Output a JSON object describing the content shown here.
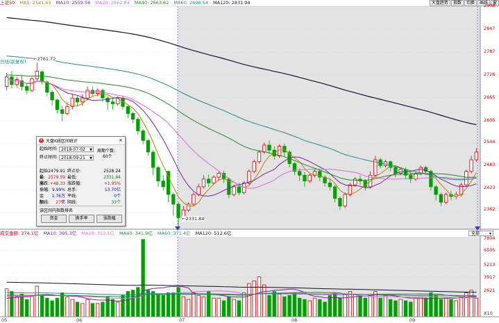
{
  "top_legend": {
    "index_name": "上证50",
    "ma5": "MA5: 2541.63",
    "ma10": "MA10: 2559.56",
    "ma20": "MA20: 2562.84",
    "ma40": "MA40: 2663.62",
    "ma60": "MA60: 2696.54",
    "ma120": "MA120: 2831.94"
  },
  "toolbar": [
    "大盘趋势",
    "指数",
    "切换",
    "画线",
    "窗"
  ],
  "side_label": "日线(前复权)",
  "price_axis": [
    "2908",
    "2847",
    "2787",
    "2726",
    "2665",
    "2605",
    "2544",
    "2483",
    "2423",
    "2362"
  ],
  "volume_axis": [
    "7804",
    "6505",
    "5213",
    "3917",
    "2621"
  ],
  "volume_unit": "X10",
  "dates": [
    "05",
    "06",
    "07",
    "08",
    "09"
  ],
  "annotations": {
    "high": "2761.72",
    "low": "2331.84"
  },
  "volume_legend": {
    "vol": "成交金额: 374.1亿",
    "ma10": "MA10: 395.3亿",
    "ma20": "MA20: 353.5亿",
    "ma40": "MA40: 341.9亿",
    "ma60": "MA60: 371.4亿",
    "ma120": "MA120: 512.6亿"
  },
  "dropdown": "全部",
  "dialog": {
    "title": "大盘K线区间统计",
    "start_label": "起始时间:",
    "start_value": "2018-07-02",
    "end_label": "终止时间:",
    "end_value": "2018-09-21",
    "period_label": "周期个数:",
    "period_value": "60个",
    "stats": [
      [
        "起始价:",
        "2479.91",
        "终止价:",
        "2528.24"
      ],
      [
        "最高:",
        "2579.59",
        "最低:",
        "2331.84"
      ],
      [
        "涨跌:",
        "+48.33",
        "涨跌幅:",
        "+1.95%"
      ],
      [
        "振幅:",
        "9.99%",
        "总手:",
        "13.70亿"
      ],
      [
        "金额:",
        "1.76万亿",
        "平线:",
        "0个"
      ],
      [
        "阳线:",
        "27个",
        "阴线:",
        "33个"
      ]
    ],
    "link": "该区间内指数排名",
    "buttons": [
      "资金",
      "换手率",
      "涨跌幅"
    ]
  },
  "colors": {
    "up": "#d40000",
    "down": "#00a000",
    "ma5": "#b8860b",
    "ma10": "#7b1fa2",
    "ma20": "#e066e0",
    "ma40": "#228b22",
    "ma60": "#1f8a8a",
    "ma120": "#101030",
    "highlight": "#e3e3e3"
  },
  "chart_data": {
    "type": "candlestick",
    "price_range": [
      2330,
      2908
    ],
    "volume_range": [
      2000,
      8000
    ],
    "candles": [
      [
        2700,
        2725,
        2690,
        2735
      ],
      [
        2725,
        2705,
        2695,
        2740
      ],
      [
        2705,
        2718,
        2698,
        2725
      ],
      [
        2715,
        2700,
        2690,
        2730
      ],
      [
        2700,
        2690,
        2680,
        2710
      ],
      [
        2690,
        2720,
        2685,
        2725
      ],
      [
        2720,
        2740,
        2715,
        2762
      ],
      [
        2738,
        2712,
        2705,
        2742
      ],
      [
        2712,
        2685,
        2675,
        2715
      ],
      [
        2685,
        2665,
        2650,
        2690
      ],
      [
        2665,
        2640,
        2630,
        2668
      ],
      [
        2640,
        2630,
        2610,
        2650
      ],
      [
        2630,
        2648,
        2625,
        2660
      ],
      [
        2648,
        2670,
        2640,
        2680
      ],
      [
        2670,
        2660,
        2650,
        2678
      ],
      [
        2660,
        2670,
        2650,
        2680
      ],
      [
        2670,
        2690,
        2665,
        2700
      ],
      [
        2690,
        2682,
        2675,
        2700
      ],
      [
        2682,
        2690,
        2675,
        2695
      ],
      [
        2690,
        2670,
        2660,
        2695
      ],
      [
        2670,
        2660,
        2640,
        2675
      ],
      [
        2660,
        2655,
        2640,
        2668
      ],
      [
        2655,
        2670,
        2650,
        2675
      ],
      [
        2670,
        2648,
        2640,
        2675
      ],
      [
        2648,
        2630,
        2618,
        2652
      ],
      [
        2630,
        2615,
        2605,
        2635
      ],
      [
        2615,
        2585,
        2575,
        2620
      ],
      [
        2585,
        2560,
        2550,
        2590
      ],
      [
        2560,
        2530,
        2520,
        2565
      ],
      [
        2530,
        2490,
        2470,
        2535
      ],
      [
        2490,
        2455,
        2440,
        2495
      ],
      [
        2455,
        2440,
        2430,
        2470
      ],
      [
        2480,
        2420,
        2400,
        2482
      ],
      [
        2420,
        2395,
        2365,
        2425
      ],
      [
        2395,
        2360,
        2332,
        2400
      ],
      [
        2360,
        2380,
        2355,
        2390
      ],
      [
        2380,
        2395,
        2375,
        2400
      ],
      [
        2395,
        2420,
        2390,
        2425
      ],
      [
        2420,
        2440,
        2415,
        2448
      ],
      [
        2440,
        2460,
        2435,
        2470
      ],
      [
        2460,
        2450,
        2440,
        2472
      ],
      [
        2450,
        2465,
        2445,
        2470
      ],
      [
        2465,
        2475,
        2455,
        2480
      ],
      [
        2475,
        2460,
        2450,
        2482
      ],
      [
        2460,
        2420,
        2410,
        2465
      ],
      [
        2420,
        2440,
        2415,
        2445
      ],
      [
        2440,
        2425,
        2418,
        2450
      ],
      [
        2425,
        2450,
        2420,
        2455
      ],
      [
        2450,
        2480,
        2445,
        2485
      ],
      [
        2480,
        2505,
        2475,
        2510
      ],
      [
        2505,
        2530,
        2500,
        2535
      ],
      [
        2530,
        2548,
        2525,
        2555
      ],
      [
        2548,
        2535,
        2525,
        2560
      ],
      [
        2535,
        2520,
        2510,
        2545
      ],
      [
        2520,
        2545,
        2515,
        2550
      ],
      [
        2545,
        2530,
        2520,
        2552
      ],
      [
        2530,
        2500,
        2490,
        2535
      ],
      [
        2500,
        2480,
        2470,
        2505
      ],
      [
        2480,
        2470,
        2455,
        2488
      ],
      [
        2470,
        2455,
        2440,
        2478
      ],
      [
        2455,
        2470,
        2450,
        2475
      ],
      [
        2470,
        2480,
        2465,
        2485
      ],
      [
        2480,
        2465,
        2455,
        2485
      ],
      [
        2465,
        2450,
        2440,
        2470
      ],
      [
        2450,
        2440,
        2430,
        2460
      ],
      [
        2440,
        2410,
        2400,
        2445
      ],
      [
        2410,
        2390,
        2380,
        2415
      ],
      [
        2390,
        2420,
        2385,
        2425
      ],
      [
        2420,
        2445,
        2415,
        2450
      ],
      [
        2445,
        2460,
        2440,
        2465
      ],
      [
        2460,
        2455,
        2445,
        2470
      ],
      [
        2455,
        2440,
        2430,
        2460
      ],
      [
        2440,
        2470,
        2435,
        2480
      ],
      [
        2470,
        2510,
        2465,
        2520
      ],
      [
        2510,
        2495,
        2488,
        2515
      ],
      [
        2495,
        2505,
        2490,
        2510
      ],
      [
        2505,
        2490,
        2480,
        2508
      ],
      [
        2490,
        2475,
        2465,
        2495
      ],
      [
        2475,
        2485,
        2470,
        2490
      ],
      [
        2485,
        2470,
        2460,
        2490
      ],
      [
        2470,
        2460,
        2450,
        2478
      ],
      [
        2460,
        2475,
        2455,
        2480
      ],
      [
        2475,
        2490,
        2470,
        2495
      ],
      [
        2490,
        2480,
        2470,
        2495
      ],
      [
        2480,
        2440,
        2430,
        2485
      ],
      [
        2440,
        2420,
        2405,
        2445
      ],
      [
        2420,
        2400,
        2390,
        2425
      ],
      [
        2400,
        2420,
        2395,
        2425
      ],
      [
        2420,
        2415,
        2405,
        2430
      ],
      [
        2415,
        2420,
        2408,
        2428
      ],
      [
        2420,
        2445,
        2415,
        2450
      ],
      [
        2445,
        2480,
        2440,
        2485
      ],
      [
        2480,
        2510,
        2475,
        2520
      ],
      [
        2510,
        2530,
        2505,
        2540
      ]
    ],
    "volumes": [
      [
        4100,
        1
      ],
      [
        3900,
        0
      ],
      [
        3500,
        1
      ],
      [
        3700,
        0
      ],
      [
        3300,
        0
      ],
      [
        3600,
        1
      ],
      [
        4300,
        1
      ],
      [
        3600,
        0
      ],
      [
        3400,
        0
      ],
      [
        3200,
        0
      ],
      [
        3400,
        0
      ],
      [
        3800,
        0
      ],
      [
        3500,
        1
      ],
      [
        3300,
        1
      ],
      [
        3100,
        0
      ],
      [
        3000,
        1
      ],
      [
        3300,
        1
      ],
      [
        3000,
        0
      ],
      [
        3000,
        1
      ],
      [
        3100,
        0
      ],
      [
        3500,
        0
      ],
      [
        3300,
        0
      ],
      [
        3100,
        1
      ],
      [
        3600,
        0
      ],
      [
        3900,
        0
      ],
      [
        4000,
        0
      ],
      [
        4200,
        0
      ],
      [
        7804,
        0
      ],
      [
        4000,
        0
      ],
      [
        3900,
        0
      ],
      [
        3700,
        0
      ],
      [
        3600,
        0
      ],
      [
        3800,
        0
      ],
      [
        3800,
        0
      ],
      [
        4200,
        0
      ],
      [
        3500,
        1
      ],
      [
        3300,
        1
      ],
      [
        3800,
        1
      ],
      [
        3600,
        1
      ],
      [
        3500,
        1
      ],
      [
        3900,
        0
      ],
      [
        3400,
        1
      ],
      [
        3400,
        1
      ],
      [
        3200,
        0
      ],
      [
        3500,
        0
      ],
      [
        3300,
        1
      ],
      [
        3200,
        0
      ],
      [
        3800,
        1
      ],
      [
        4500,
        1
      ],
      [
        4700,
        1
      ],
      [
        5000,
        1
      ],
      [
        4400,
        1
      ],
      [
        3600,
        0
      ],
      [
        3900,
        0
      ],
      [
        3700,
        1
      ],
      [
        3500,
        0
      ],
      [
        3600,
        0
      ],
      [
        3800,
        0
      ],
      [
        3400,
        0
      ],
      [
        3300,
        0
      ],
      [
        3200,
        1
      ],
      [
        3400,
        1
      ],
      [
        3300,
        0
      ],
      [
        3100,
        0
      ],
      [
        3600,
        0
      ],
      [
        3800,
        0
      ],
      [
        3400,
        0
      ],
      [
        3700,
        1
      ],
      [
        3900,
        1
      ],
      [
        3700,
        1
      ],
      [
        3600,
        0
      ],
      [
        3400,
        0
      ],
      [
        3600,
        1
      ],
      [
        3900,
        1
      ],
      [
        3400,
        0
      ],
      [
        3600,
        1
      ],
      [
        3300,
        0
      ],
      [
        3200,
        0
      ],
      [
        3300,
        1
      ],
      [
        3200,
        0
      ],
      [
        3100,
        0
      ],
      [
        3400,
        1
      ],
      [
        3500,
        1
      ],
      [
        3400,
        0
      ],
      [
        3800,
        0
      ],
      [
        3600,
        0
      ],
      [
        3300,
        0
      ],
      [
        3400,
        1
      ],
      [
        3300,
        0
      ],
      [
        3200,
        1
      ],
      [
        3500,
        1
      ],
      [
        3800,
        1
      ],
      [
        4000,
        1
      ],
      [
        3400,
        1
      ]
    ]
  }
}
